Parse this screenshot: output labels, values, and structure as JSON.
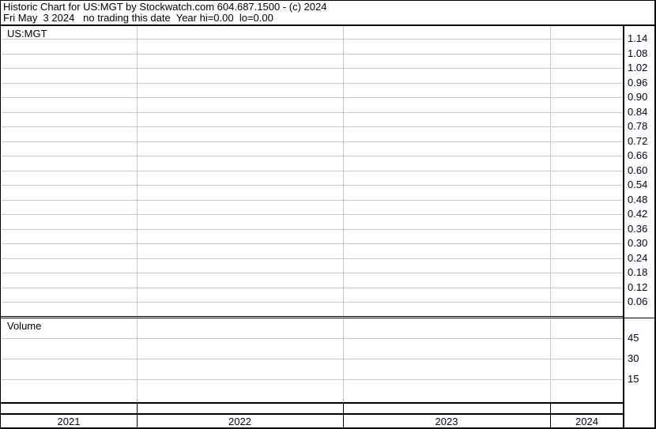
{
  "header": {
    "line1": "Historic Chart for US:MGT by Stockwatch.com 604.687.1500 - (c) 2024",
    "line2": "Fri May  3 2024   no trading this date  Year hi=0.00  lo=0.00"
  },
  "chart_data": [
    {
      "type": "line",
      "title": "US:MGT",
      "series": [],
      "y_ticks": [
        "1.14",
        "1.08",
        "1.02",
        "0.96",
        "0.90",
        "0.84",
        "0.78",
        "0.72",
        "0.66",
        "0.60",
        "0.54",
        "0.48",
        "0.42",
        "0.36",
        "0.30",
        "0.24",
        "0.18",
        "0.12",
        "0.06"
      ],
      "x_ticks": [
        "2021",
        "2022",
        "2023",
        "2024"
      ],
      "grid": true
    },
    {
      "type": "bar",
      "title": "Volume",
      "series": [],
      "y_ticks": [
        "45",
        "30",
        "15"
      ],
      "grid": true
    }
  ]
}
